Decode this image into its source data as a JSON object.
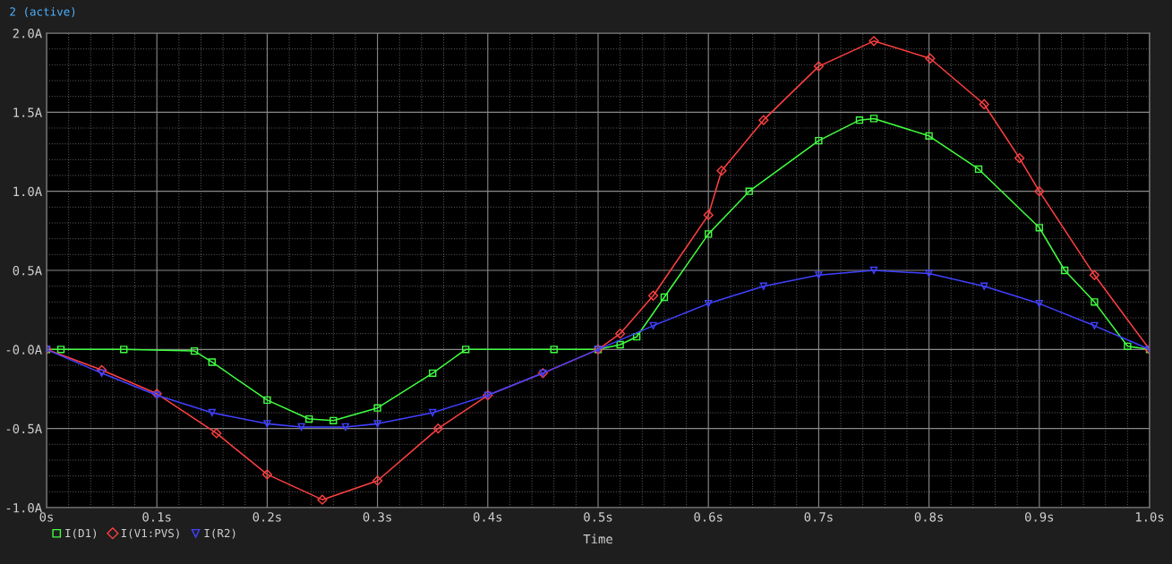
{
  "chart_data": {
    "type": "line",
    "xlabel": "Time",
    "annotations": [
      "2 (active)"
    ],
    "grid": true,
    "legend": "bottom left",
    "xlim": [
      0,
      1.0
    ],
    "xticks": [
      {
        "value": 0,
        "label": "0s"
      },
      {
        "value": 0.1,
        "label": "0.1s"
      },
      {
        "value": 0.2,
        "label": "0.2s"
      },
      {
        "value": 0.3,
        "label": "0.3s"
      },
      {
        "value": 0.4,
        "label": "0.4s"
      },
      {
        "value": 0.5,
        "label": "0.5s"
      },
      {
        "value": 0.6,
        "label": "0.6s"
      },
      {
        "value": 0.7,
        "label": "0.7s"
      },
      {
        "value": 0.8,
        "label": "0.8s"
      },
      {
        "value": 0.9,
        "label": "0.9s"
      },
      {
        "value": 1.0,
        "label": "1.0s"
      }
    ],
    "ylim": [
      -1.0,
      2.0
    ],
    "yticks": [
      {
        "value": -1.0,
        "label": "-1.0A"
      },
      {
        "value": -0.5,
        "label": "-0.5A"
      },
      {
        "value": 0,
        "label": "-0.0A"
      },
      {
        "value": 0.5,
        "label": "0.5A"
      },
      {
        "value": 1.0,
        "label": "1.0A"
      },
      {
        "value": 1.5,
        "label": "1.5A"
      },
      {
        "value": 2.0,
        "label": "2.0A"
      }
    ],
    "series": [
      {
        "name": "I(D1)",
        "color": "#40ff40",
        "marker": "square",
        "x": [
          0,
          0.013,
          0.07,
          0.134,
          0.15,
          0.2,
          0.238,
          0.26,
          0.3,
          0.35,
          0.38,
          0.46,
          0.5,
          0.52,
          0.535,
          0.56,
          0.6,
          0.637,
          0.7,
          0.737,
          0.75,
          0.8,
          0.845,
          0.9,
          0.923,
          0.95,
          0.98,
          1.0
        ],
        "values": [
          0,
          0,
          0,
          -0.01,
          -0.08,
          -0.32,
          -0.44,
          -0.45,
          -0.37,
          -0.15,
          0,
          0,
          0,
          0.03,
          0.08,
          0.33,
          0.73,
          1.0,
          1.32,
          1.45,
          1.46,
          1.35,
          1.14,
          0.77,
          0.5,
          0.3,
          0.02,
          0
        ]
      },
      {
        "name": "I(V1:PVS)",
        "color": "#ff4040",
        "marker": "diamond",
        "x": [
          0,
          0.05,
          0.1,
          0.154,
          0.2,
          0.25,
          0.3,
          0.355,
          0.4,
          0.45,
          0.5,
          0.52,
          0.55,
          0.6,
          0.612,
          0.65,
          0.7,
          0.75,
          0.801,
          0.85,
          0.882,
          0.9,
          0.95,
          1.0
        ],
        "values": [
          0,
          -0.13,
          -0.28,
          -0.53,
          -0.79,
          -0.95,
          -0.83,
          -0.5,
          -0.29,
          -0.15,
          0,
          0.1,
          0.34,
          0.85,
          1.13,
          1.45,
          1.79,
          1.95,
          1.84,
          1.55,
          1.21,
          1.0,
          0.47,
          0
        ]
      },
      {
        "name": "I(R2)",
        "color": "#4040ff",
        "marker": "triangle",
        "x": [
          0,
          0.05,
          0.1,
          0.15,
          0.2,
          0.231,
          0.271,
          0.3,
          0.35,
          0.4,
          0.45,
          0.5,
          0.55,
          0.6,
          0.65,
          0.7,
          0.75,
          0.8,
          0.85,
          0.9,
          0.95,
          1.0
        ],
        "values": [
          0,
          -0.15,
          -0.29,
          -0.4,
          -0.47,
          -0.49,
          -0.49,
          -0.47,
          -0.4,
          -0.29,
          -0.15,
          0,
          0.15,
          0.29,
          0.4,
          0.47,
          0.5,
          0.48,
          0.4,
          0.29,
          0.15,
          0
        ]
      }
    ]
  }
}
